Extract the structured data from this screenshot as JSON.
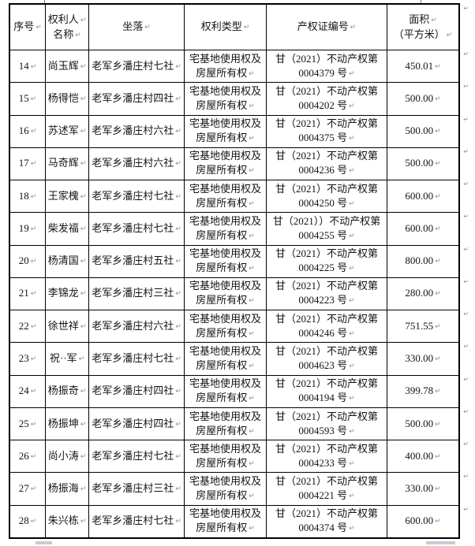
{
  "marks": {
    "return_mark": "↵",
    "row_end_mark": "↵"
  },
  "table": {
    "header": {
      "col_no": [
        "序号"
      ],
      "col_name": [
        "权利人",
        "名称"
      ],
      "col_location": [
        "坐落"
      ],
      "col_right_type": [
        "权利类型"
      ],
      "col_cert": [
        "产权证编号"
      ],
      "col_area": [
        "面积",
        "（平方米）"
      ]
    },
    "rows": [
      {
        "no": "14",
        "name": "尚玉辉",
        "location": "老军乡潘庄村七社",
        "right_type_l1": "宅基地使用权及",
        "right_type_l2": "房屋所有权",
        "cert_l1": "甘（2021）不动产权第",
        "cert_l2": "0004379 号",
        "area": "450.01"
      },
      {
        "no": "15",
        "name": "杨得恺",
        "location": "老军乡潘庄村四社",
        "right_type_l1": "宅基地使用权及",
        "right_type_l2": "房屋所有权",
        "cert_l1": "甘（2021）不动产权第",
        "cert_l2": "0004202 号",
        "area": "500.00"
      },
      {
        "no": "16",
        "name": "苏述军",
        "location": "老军乡潘庄村六社",
        "right_type_l1": "宅基地使用权及",
        "right_type_l2": "房屋所有权",
        "cert_l1": "甘（2021）不动产权第",
        "cert_l2": "0004375 号",
        "area": "500.00"
      },
      {
        "no": "17",
        "name": "马奇辉",
        "location": "老军乡潘庄村六社",
        "right_type_l1": "宅基地使用权及",
        "right_type_l2": "房屋所有权",
        "cert_l1": "甘（2021）不动产权第",
        "cert_l2": "0004236 号",
        "area": "500.00"
      },
      {
        "no": "18",
        "name": "王家槐",
        "location": "老军乡潘庄村七社",
        "right_type_l1": "宅基地使用权及",
        "right_type_l2": "房屋所有权",
        "cert_l1": "甘（2021）不动产权第",
        "cert_l2": "0004250 号",
        "area": "600.00"
      },
      {
        "no": "19",
        "name": "柴发福",
        "location": "老军乡潘庄村七社",
        "right_type_l1": "宅基地使用权及",
        "right_type_l2": "房屋所有权",
        "cert_l1": "甘（2021））不动产权第",
        "cert_l2": "0004255 号",
        "area": "600.00"
      },
      {
        "no": "20",
        "name": "杨清国",
        "location": "老军乡潘庄村五社",
        "right_type_l1": "宅基地使用权及",
        "right_type_l2": "房屋所有权",
        "cert_l1": "甘（2021）不动产权第",
        "cert_l2": "0004225 号",
        "area": "800.00"
      },
      {
        "no": "21",
        "name": "李锦龙",
        "location": "老军乡潘庄村三社",
        "right_type_l1": "宅基地使用权及",
        "right_type_l2": "房屋所有权",
        "cert_l1": "甘（2021）不动产权第",
        "cert_l2": "0004223 号",
        "area": "280.00"
      },
      {
        "no": "22",
        "name": "徐世祥",
        "location": "老军乡潘庄村六社",
        "right_type_l1": "宅基地使用权及",
        "right_type_l2": "房屋所有权",
        "cert_l1": "甘（2021）不动产权第",
        "cert_l2": "0004246 号",
        "area": "751.55"
      },
      {
        "no": "23",
        "name": "祝··军",
        "location": "老军乡潘庄村七社",
        "right_type_l1": "宅基地使用权及",
        "right_type_l2": "房屋所有权",
        "cert_l1": "甘（2021）不动产权第",
        "cert_l2": "0004623 号",
        "area": "330.00"
      },
      {
        "no": "24",
        "name": "杨振奇",
        "location": "老军乡潘庄村四社",
        "right_type_l1": "宅基地使用权及",
        "right_type_l2": "房屋所有权",
        "cert_l1": "甘（2021）不动产权第",
        "cert_l2": "0004194 号",
        "area": "399.78"
      },
      {
        "no": "25",
        "name": "杨振坤",
        "location": "老军乡潘庄村四社",
        "right_type_l1": "宅基地使用权及",
        "right_type_l2": "房屋所有权",
        "cert_l1": "甘（2021）不动产权第",
        "cert_l2": "0004593 号",
        "area": "500.00"
      },
      {
        "no": "26",
        "name": "尚小涛",
        "location": "老军乡潘庄村七社",
        "right_type_l1": "宅基地使用权及",
        "right_type_l2": "房屋所有权",
        "cert_l1": "甘（2021）不动产权第",
        "cert_l2": "0004233 号",
        "area": "400.00"
      },
      {
        "no": "27",
        "name": "杨振海",
        "location": "老军乡潘庄村三社",
        "right_type_l1": "宅基地使用权及",
        "right_type_l2": "房屋所有权",
        "cert_l1": "甘（2021）不动产权第",
        "cert_l2": "0004221 号",
        "area": "330.00"
      },
      {
        "no": "28",
        "name": "朱兴栋",
        "location": "老军乡潘庄村七社",
        "right_type_l1": "宅基地使用权及",
        "right_type_l2": "房屋所有权",
        "cert_l1": "甘（2021）不动产权第",
        "cert_l2": "0004374 号",
        "area": "600.00"
      }
    ]
  }
}
